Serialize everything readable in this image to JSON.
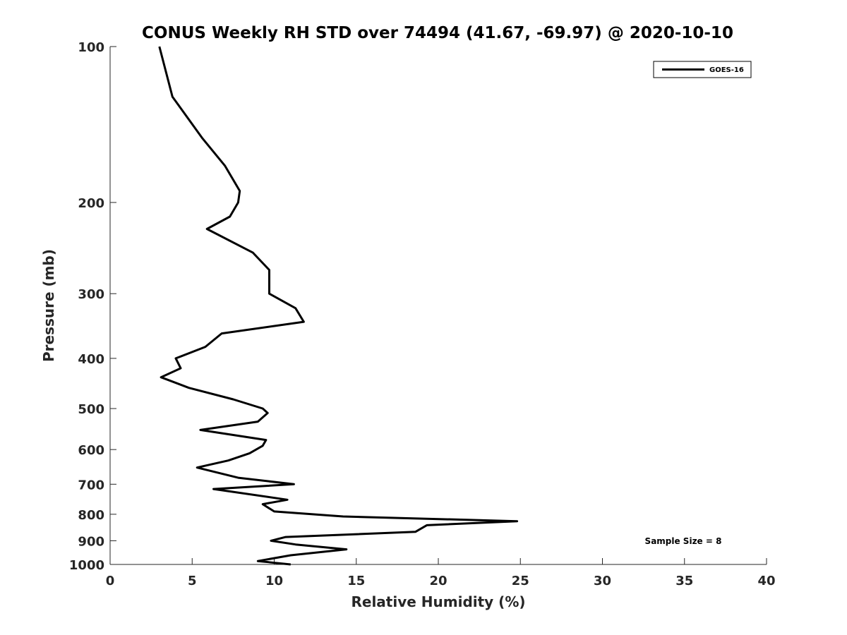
{
  "chart_data": {
    "type": "line",
    "title": "CONUS Weekly RH STD over 74494 (41.67, -69.97) @ 2020-10-10",
    "xlabel": "Relative Humidity (%)",
    "ylabel": "Pressure (mb)",
    "xlim": [
      0,
      40
    ],
    "ylim": [
      100,
      1000
    ],
    "y_scale": "log",
    "y_reversed": true,
    "x_ticks": [
      0,
      5,
      10,
      15,
      20,
      25,
      30,
      35,
      40
    ],
    "y_ticks": [
      100,
      200,
      300,
      400,
      500,
      600,
      700,
      800,
      900,
      1000
    ],
    "legend": {
      "entries": [
        "GOES-16"
      ],
      "position": "top-right"
    },
    "annotation": "Sample Size = 8",
    "series": [
      {
        "name": "GOES-16",
        "color": "#000000",
        "x": [
          3.0,
          3.8,
          5.6,
          7.0,
          7.9,
          7.8,
          7.3,
          5.9,
          8.7,
          9.7,
          9.7,
          11.3,
          11.8,
          6.8,
          5.8,
          4.0,
          4.3,
          3.1,
          4.8,
          7.5,
          9.3,
          9.6,
          9.0,
          5.5,
          9.5,
          9.3,
          8.5,
          7.2,
          5.3,
          7.8,
          11.2,
          6.3,
          10.8,
          9.3,
          10.0,
          14.2,
          24.8,
          19.3,
          18.6,
          10.7,
          9.8,
          11.3,
          14.4,
          11.0,
          9.0,
          11.0
        ],
        "y": [
          100,
          125,
          150,
          170,
          190,
          200,
          213,
          225,
          250,
          270,
          300,
          320,
          340,
          358,
          380,
          400,
          418,
          435,
          456,
          480,
          500,
          510,
          530,
          550,
          575,
          590,
          610,
          630,
          650,
          680,
          700,
          715,
          750,
          765,
          790,
          808,
          825,
          840,
          865,
          885,
          900,
          915,
          935,
          960,
          985,
          1000
        ]
      }
    ]
  }
}
